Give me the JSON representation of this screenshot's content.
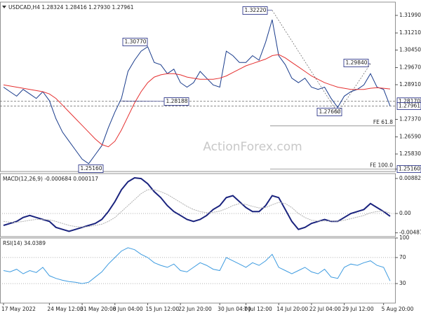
{
  "chart_data": [
    {
      "type": "line",
      "title": "USDCAD,H4 1.28324 1.28416 1.27930 1.27961",
      "watermark": "ActionForex.com",
      "ylim": [
        1.25052,
        1.32581
      ],
      "yticks": [
        {
          "value": 1.3199,
          "label": "1.31990"
        },
        {
          "value": 1.3121,
          "label": "1.31210"
        },
        {
          "value": 1.3045,
          "label": "1.30450"
        },
        {
          "value": 1.2967,
          "label": "1.29670"
        },
        {
          "value": 1.2891,
          "label": "1.28910"
        },
        {
          "value": 1.2737,
          "label": "1.27370"
        },
        {
          "value": 1.2659,
          "label": "1.26590"
        },
        {
          "value": 1.2583,
          "label": "1.25830"
        }
      ],
      "price_markers": [
        {
          "value": 1.2817,
          "label": "1.28170"
        },
        {
          "value": 1.27961,
          "label": "1.27961"
        },
        {
          "value": 1.2516,
          "label": "1.25160"
        }
      ],
      "annotations": [
        {
          "value": 1.3222,
          "label": "1.32220"
        },
        {
          "value": 1.3077,
          "label": "1.30770"
        },
        {
          "value": 1.28188,
          "label": "1.28188"
        },
        {
          "value": 1.2516,
          "label": "1.25160"
        },
        {
          "value": 1.2766,
          "label": "1.27660"
        },
        {
          "value": 1.2984,
          "label": "1.29840"
        }
      ],
      "fe_levels": [
        {
          "value": 1.2708,
          "label": "FE 61.8"
        },
        {
          "value": 1.2516,
          "label": "FE 100.0"
        }
      ],
      "series": [
        {
          "color": "#1a3c8c",
          "values": [
            1.288,
            1.286,
            1.284,
            1.287,
            1.285,
            1.283,
            1.286,
            1.282,
            1.274,
            1.268,
            1.264,
            1.26,
            1.256,
            1.254,
            1.258,
            1.262,
            1.27,
            1.277,
            1.283,
            1.295,
            1.3,
            1.304,
            1.306,
            1.299,
            1.298,
            1.294,
            1.296,
            1.29,
            1.288,
            1.29,
            1.295,
            1.292,
            1.289,
            1.288,
            1.304,
            1.302,
            1.299,
            1.299,
            1.302,
            1.3,
            1.308,
            1.318,
            1.302,
            1.298,
            1.292,
            1.29,
            1.292,
            1.288,
            1.287,
            1.288,
            1.283,
            1.279,
            1.284,
            1.286,
            1.287,
            1.289,
            1.294,
            1.288,
            1.287,
            1.2796
          ]
        },
        {
          "color": "#e53030",
          "values": [
            1.289,
            1.2885,
            1.288,
            1.2875,
            1.287,
            1.2865,
            1.286,
            1.285,
            1.283,
            1.28,
            1.277,
            1.274,
            1.271,
            1.268,
            1.265,
            1.2625,
            1.2615,
            1.264,
            1.269,
            1.275,
            1.281,
            1.286,
            1.29,
            1.2925,
            1.2935,
            1.294,
            1.294,
            1.2935,
            1.2925,
            1.292,
            1.2915,
            1.2915,
            1.2915,
            1.292,
            1.293,
            1.2945,
            1.296,
            1.2975,
            1.2985,
            1.2995,
            1.3005,
            1.302,
            1.3025,
            1.301,
            1.299,
            1.297,
            1.295,
            1.293,
            1.2915,
            1.29,
            1.289,
            1.288,
            1.2875,
            1.287,
            1.287,
            1.287,
            1.2875,
            1.2878,
            1.2875,
            1.2872
          ]
        }
      ]
    },
    {
      "type": "line",
      "title": "MACD(12,26,9) -0.000684 0.000117",
      "ylim": [
        -0.00582,
        0.01005
      ],
      "yticks": [
        0.00882,
        {
          "value": 0,
          "label": "0.00"
        },
        -0.004872
      ],
      "levels": [
        0
      ],
      "series": [
        {
          "color": "#1a237e",
          "values": [
            -0.003,
            -0.0025,
            -0.002,
            -0.001,
            -0.0005,
            -0.001,
            -0.0015,
            -0.002,
            -0.0035,
            -0.004,
            -0.0045,
            -0.004,
            -0.0035,
            -0.003,
            -0.0025,
            -0.0015,
            0.0005,
            0.003,
            0.006,
            0.008,
            0.009,
            0.0088,
            0.0075,
            0.0055,
            0.004,
            0.002,
            0.0005,
            -0.0005,
            -0.0015,
            -0.002,
            -0.0015,
            -0.0005,
            0.001,
            0.002,
            0.004,
            0.0045,
            0.003,
            0.0015,
            0.0005,
            0.0005,
            0.002,
            0.0045,
            0.004,
            0.001,
            -0.002,
            -0.004,
            -0.0035,
            -0.0025,
            -0.002,
            -0.0015,
            -0.002,
            -0.002,
            -0.001,
            0,
            0.0005,
            0.001,
            0.0025,
            0.0015,
            0.0005,
            -0.000684
          ]
        },
        {
          "color": "#b0b0b0",
          "values": [
            -0.002,
            -0.0022,
            -0.0022,
            -0.002,
            -0.0017,
            -0.0015,
            -0.0015,
            -0.0016,
            -0.002,
            -0.0025,
            -0.003,
            -0.0033,
            -0.0034,
            -0.0033,
            -0.003,
            -0.0027,
            -0.002,
            -0.001,
            0.0005,
            0.002,
            0.0035,
            0.005,
            0.006,
            0.006,
            0.0055,
            0.0048,
            0.0038,
            0.0028,
            0.0018,
            0.001,
            0.0005,
            0.0002,
            0.0003,
            0.0006,
            0.0012,
            0.002,
            0.0025,
            0.0023,
            0.0018,
            0.0014,
            0.0015,
            0.0022,
            0.0028,
            0.0025,
            0.0015,
            0,
            -0.001,
            -0.0017,
            -0.0019,
            -0.0019,
            -0.0019,
            -0.002,
            -0.0017,
            -0.0013,
            -0.0009,
            -0.0005,
            0.0002,
            0.0005,
            0.0006,
            0.000117
          ]
        }
      ]
    },
    {
      "type": "line",
      "title": "RSI(14) 34.0389",
      "ylim": [
        0,
        100
      ],
      "yticks": [
        100,
        70,
        30
      ],
      "levels": [
        70,
        30
      ],
      "categories": [
        "17 May 2022",
        null,
        null,
        null,
        null,
        null,
        null,
        "24 May 12:00",
        null,
        null,
        null,
        null,
        "31 May 20:00",
        null,
        null,
        null,
        null,
        "8 Jun 04:00",
        null,
        null,
        null,
        null,
        "15 Jun 12:00",
        null,
        null,
        null,
        null,
        "22 Jun 20:00",
        null,
        null,
        null,
        null,
        null,
        "30 Jun 04:00",
        null,
        null,
        null,
        "7 Jul 12:00",
        null,
        null,
        null,
        null,
        "14 Jul 20:00",
        null,
        null,
        null,
        null,
        "22 Jul 04:00",
        null,
        null,
        null,
        null,
        "29 Jul 12:00",
        null,
        null,
        null,
        null,
        null,
        "5 Aug 20:00",
        null
      ],
      "series": [
        {
          "color": "#3d9be0",
          "values": [
            50,
            48,
            52,
            45,
            50,
            47,
            55,
            42,
            38,
            35,
            33,
            32,
            30,
            32,
            40,
            48,
            60,
            70,
            80,
            85,
            82,
            75,
            70,
            62,
            58,
            55,
            60,
            50,
            48,
            55,
            62,
            58,
            52,
            50,
            70,
            65,
            60,
            55,
            62,
            58,
            65,
            75,
            55,
            50,
            45,
            50,
            55,
            48,
            45,
            52,
            40,
            38,
            55,
            60,
            58,
            62,
            65,
            58,
            55,
            34.0389
          ]
        }
      ]
    }
  ]
}
